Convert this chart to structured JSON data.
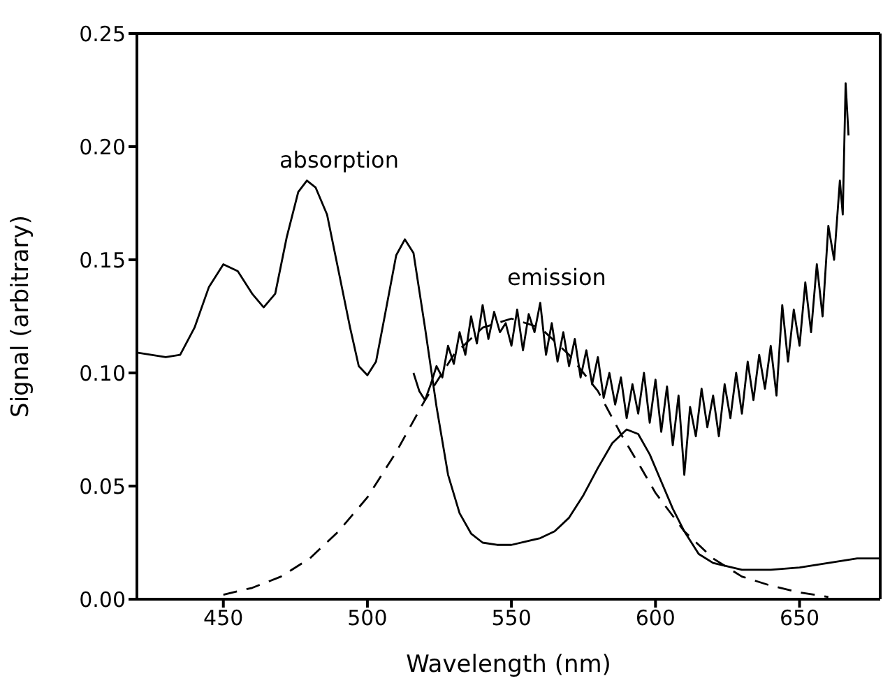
{
  "chart_data": {
    "type": "line",
    "xlabel": "Wavelength  (nm)",
    "ylabel": "Signal  (arbitrary)",
    "xlim": [
      420,
      678
    ],
    "ylim": [
      0,
      0.25
    ],
    "xticks": [
      450,
      500,
      550,
      600,
      650
    ],
    "yticks": [
      {
        "value": 0,
        "label": "0.00"
      },
      {
        "value": 0.05,
        "label": "0.05"
      },
      {
        "value": 0.1,
        "label": "0.10"
      },
      {
        "value": 0.15,
        "label": "0.15"
      },
      {
        "value": 0.2,
        "label": "0.20"
      },
      {
        "value": 0.25,
        "label": "0.25"
      }
    ],
    "grid": false,
    "legend": false,
    "marker": "none",
    "series": [
      {
        "color": "#000000",
        "line_style": "solid",
        "x": [
          420,
          430,
          435,
          440,
          445,
          450,
          455,
          460,
          464,
          468,
          472,
          476,
          479,
          482,
          486,
          490,
          494,
          497,
          500,
          503,
          506,
          510,
          513,
          516,
          520,
          524,
          528,
          532,
          536,
          540,
          545,
          550,
          560,
          565,
          570,
          575,
          580,
          585,
          590,
          594,
          598,
          602,
          606,
          610,
          615,
          620,
          630,
          640,
          650,
          660,
          670,
          678
        ],
        "values": [
          0.109,
          0.107,
          0.108,
          0.12,
          0.138,
          0.148,
          0.145,
          0.135,
          0.129,
          0.135,
          0.16,
          0.18,
          0.185,
          0.182,
          0.17,
          0.145,
          0.12,
          0.103,
          0.099,
          0.105,
          0.125,
          0.152,
          0.159,
          0.153,
          0.12,
          0.085,
          0.055,
          0.038,
          0.029,
          0.025,
          0.024,
          0.024,
          0.027,
          0.03,
          0.036,
          0.046,
          0.058,
          0.069,
          0.075,
          0.073,
          0.064,
          0.052,
          0.04,
          0.03,
          0.02,
          0.016,
          0.013,
          0.013,
          0.014,
          0.016,
          0.018,
          0.018
        ]
      },
      {
        "color": "#000000",
        "line_style": "solid",
        "x": [
          516,
          518,
          520,
          522,
          524,
          526,
          528,
          530,
          532,
          534,
          536,
          538,
          540,
          542,
          544,
          546,
          548,
          550,
          552,
          554,
          556,
          558,
          560,
          562,
          564,
          566,
          568,
          570,
          572,
          574,
          576,
          578,
          580,
          582,
          584,
          586,
          588,
          590,
          592,
          594,
          596,
          598,
          600,
          602,
          604,
          606,
          608,
          610,
          612,
          614,
          616,
          618,
          620,
          622,
          624,
          626,
          628,
          630,
          632,
          634,
          636,
          638,
          640,
          642,
          644,
          646,
          648,
          650,
          652,
          654,
          656,
          658,
          660,
          662,
          664,
          665,
          666,
          667
        ],
        "values": [
          0.1,
          0.092,
          0.088,
          0.095,
          0.103,
          0.098,
          0.112,
          0.104,
          0.118,
          0.108,
          0.125,
          0.113,
          0.13,
          0.115,
          0.127,
          0.118,
          0.122,
          0.112,
          0.128,
          0.11,
          0.126,
          0.118,
          0.131,
          0.108,
          0.122,
          0.105,
          0.118,
          0.103,
          0.115,
          0.098,
          0.11,
          0.095,
          0.107,
          0.089,
          0.1,
          0.086,
          0.098,
          0.08,
          0.095,
          0.082,
          0.1,
          0.078,
          0.097,
          0.074,
          0.094,
          0.068,
          0.09,
          0.055,
          0.085,
          0.072,
          0.093,
          0.076,
          0.09,
          0.072,
          0.095,
          0.08,
          0.1,
          0.082,
          0.105,
          0.088,
          0.108,
          0.093,
          0.112,
          0.09,
          0.13,
          0.105,
          0.128,
          0.112,
          0.14,
          0.118,
          0.148,
          0.125,
          0.165,
          0.15,
          0.185,
          0.17,
          0.228,
          0.205
        ]
      },
      {
        "color": "#000000",
        "line_style": "dashed",
        "x": [
          450,
          460,
          470,
          480,
          490,
          500,
          510,
          520,
          530,
          540,
          550,
          560,
          570,
          580,
          588,
          595,
          600,
          610,
          620,
          630,
          640,
          650,
          660
        ],
        "values": [
          0.002,
          0.005,
          0.01,
          0.018,
          0.03,
          0.045,
          0.065,
          0.088,
          0.108,
          0.12,
          0.124,
          0.12,
          0.108,
          0.092,
          0.073,
          0.058,
          0.047,
          0.03,
          0.018,
          0.01,
          0.006,
          0.003,
          0.001
        ]
      }
    ],
    "annotations": [
      "absorption",
      "emission"
    ]
  }
}
